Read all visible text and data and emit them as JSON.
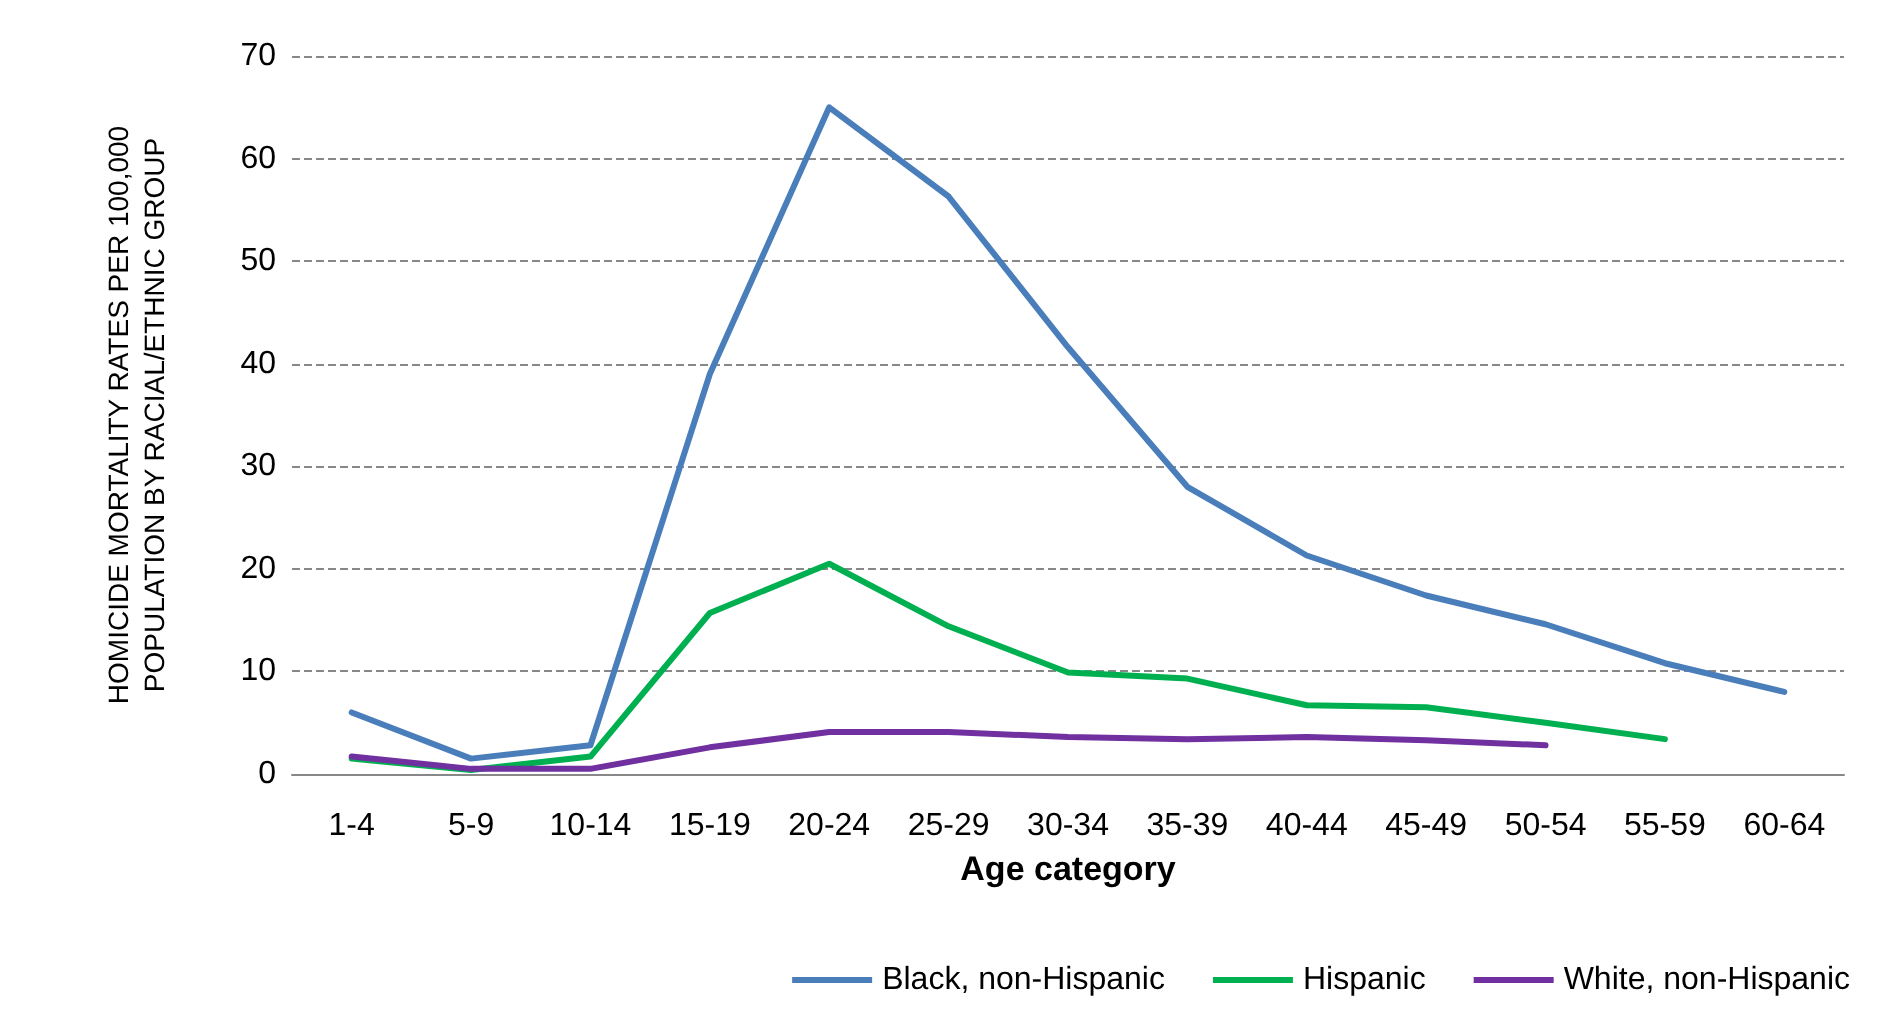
{
  "chart_data": {
    "type": "line",
    "xlabel": "Age category",
    "ylabel": "HOMICIDE MORTALITY RATES PER 100,000\nPOPULATION BY RACIAL/ETHNIC GROUP",
    "categories": [
      "1-4",
      "5-9",
      "10-14",
      "15-19",
      "20-24",
      "25-29",
      "30-34",
      "35-39",
      "40-44",
      "45-49",
      "50-54",
      "55-59",
      "60-64"
    ],
    "series": [
      {
        "name": "Black, non-Hispanic",
        "color": "#4a7ebb",
        "values": [
          6.0,
          1.5,
          2.8,
          39,
          65,
          56.3,
          41.6,
          28,
          21.3,
          17.4,
          14.6,
          10.8,
          8.0
        ]
      },
      {
        "name": "Hispanic",
        "color": "#00b050",
        "values": [
          1.5,
          0.4,
          1.7,
          15.7,
          20.5,
          14.4,
          9.9,
          9.3,
          6.7,
          6.5,
          5.0,
          3.4,
          null
        ]
      },
      {
        "name": "White, non-Hispanic",
        "color": "#7030a0",
        "values": [
          1.7,
          0.5,
          0.5,
          2.6,
          4.1,
          4.1,
          3.6,
          3.4,
          3.6,
          3.3,
          2.8,
          null,
          null
        ]
      }
    ],
    "ylim": [
      0,
      70
    ],
    "yticks": [
      0,
      10,
      20,
      30,
      40,
      50,
      60,
      70
    ],
    "grid": "y",
    "legend": "bottom right",
    "marker": "none",
    "line_style": "solid"
  }
}
